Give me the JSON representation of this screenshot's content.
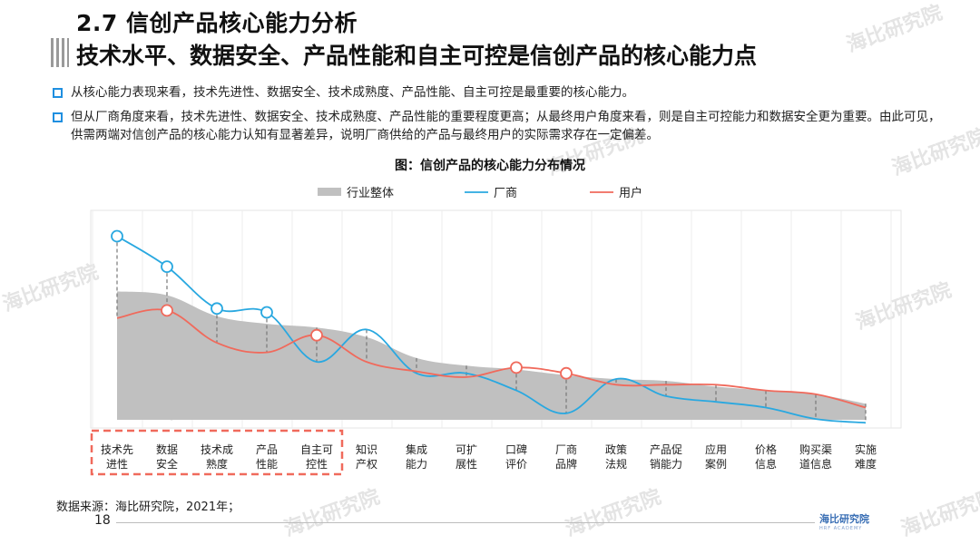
{
  "header": {
    "title": "2.7 信创产品核心能力分析",
    "subtitle": "技术水平、数据安全、产品性能和自主可控是信创产品的核心能力点"
  },
  "bullets": [
    "从核心能力表现来看，技术先进性、数据安全、技术成熟度、产品性能、自主可控是最重要的核心能力。",
    "但从厂商角度来看，技术先进性、数据安全、技术成熟度、产品性能的重要程度更高；从最终用户角度来看，则是自主可控能力和数据安全更为重要。由此可见，供需两端对信创产品的核心能力认知有显著差异，说明厂商供给的产品与最终用户的实际需求存在一定偏差。"
  ],
  "chart_data": {
    "type": "line",
    "title": "图：信创产品的核心能力分布情况",
    "categories": [
      [
        "技术先",
        "进性"
      ],
      [
        "数据",
        "安全"
      ],
      [
        "技术成",
        "熟度"
      ],
      [
        "产品",
        "性能"
      ],
      [
        "自主可",
        "控性"
      ],
      [
        "知识",
        "产权"
      ],
      [
        "集成",
        "能力"
      ],
      [
        "可扩",
        "展性"
      ],
      [
        "口碑",
        "评价"
      ],
      [
        "厂商",
        "品牌"
      ],
      [
        "政策",
        "法规"
      ],
      [
        "产品促",
        "销能力"
      ],
      [
        "应用",
        "案例"
      ],
      [
        "价格",
        "信息"
      ],
      [
        "购买渠",
        "道信息"
      ],
      [
        "实施",
        "难度"
      ]
    ],
    "ylim": [
      0,
      100
    ],
    "series": [
      {
        "name": "行业整体",
        "kind": "area",
        "color": "#c0c0c0",
        "values": [
          66,
          64,
          53,
          49,
          47,
          42,
          31,
          27,
          25,
          22,
          20,
          19,
          16,
          14,
          12,
          7
        ]
      },
      {
        "name": "厂商",
        "kind": "line",
        "color": "#29a8e0",
        "values": [
          95,
          79,
          57,
          55,
          29,
          46,
          23,
          23,
          14,
          2,
          20,
          11,
          8,
          5,
          -1,
          -3
        ]
      },
      {
        "name": "用户",
        "kind": "line",
        "color": "#f06a5c",
        "values": [
          52,
          56,
          39,
          34,
          43,
          29,
          24,
          21,
          26,
          23,
          17,
          17,
          17,
          14,
          12,
          5
        ]
      }
    ],
    "highlight_group": [
      0,
      4
    ],
    "marked_points": {
      "厂商": [
        0,
        1,
        2,
        3
      ],
      "用户": [
        1,
        4,
        8,
        9
      ]
    },
    "grid": true,
    "legend": "top-center"
  },
  "source": "数据来源：海比研究院，2021年；",
  "page_number": "18",
  "brand": {
    "name": "海比研究院",
    "sub": "HRF ACADEMY"
  },
  "watermark": "海比研究院",
  "colors": {
    "accent": "#1f8fe0",
    "highlight_box": "#f06a5c"
  }
}
